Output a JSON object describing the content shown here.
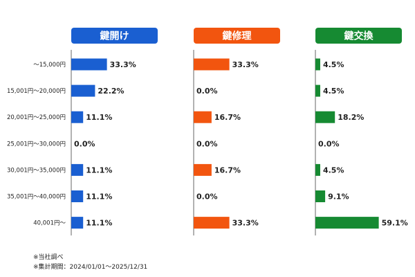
{
  "chart_data": {
    "type": "bar",
    "orientation": "horizontal",
    "categories": [
      "～15,000円",
      "15,001円～20,000円",
      "20,001円～25,000円",
      "25,001円～30,000円",
      "30,001円～35,000円",
      "35,001円～40,000円",
      "40,001円～"
    ],
    "value_format": "{v}%",
    "series": [
      {
        "name": "鍵開け",
        "color": "#1a5fd1",
        "values": [
          33.3,
          22.2,
          11.1,
          0.0,
          11.1,
          11.1,
          11.1
        ]
      },
      {
        "name": "鍵修理",
        "color": "#f2550f",
        "values": [
          33.3,
          0.0,
          16.7,
          0.0,
          16.7,
          0.0,
          33.3
        ]
      },
      {
        "name": "鍵交換",
        "color": "#168a32",
        "values": [
          4.5,
          4.5,
          18.2,
          0.0,
          4.5,
          9.1,
          59.1
        ]
      }
    ],
    "layout": "small-multiples, one panel per series, shared category labels on left",
    "grid": false
  },
  "notes": [
    "※当社調べ",
    "※集計期間：2024/01/01～2025/12/31"
  ]
}
